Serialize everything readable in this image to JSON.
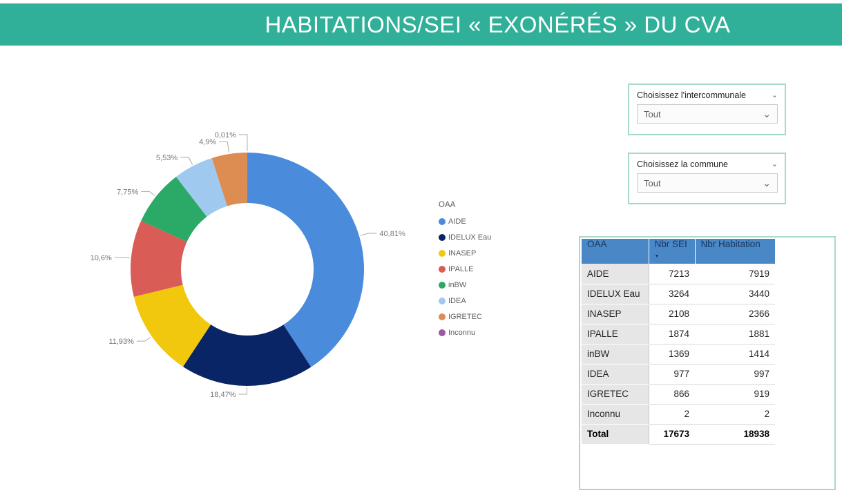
{
  "banner": {
    "title": "HABITATIONS/SEI « EXONÉRÉS » DU CVA"
  },
  "slicers": [
    {
      "label": "Choisissez l'intercommunale",
      "value": "Tout"
    },
    {
      "label": "Choisissez la commune",
      "value": "Tout"
    }
  ],
  "chart_data": {
    "type": "pie",
    "subtype": "donut",
    "legend_title": "OAA",
    "legend_position": "right",
    "categories": [
      "AIDE",
      "IDELUX Eau",
      "INASEP",
      "IPALLE",
      "inBW",
      "IDEA",
      "IGRETEC",
      "Inconnu"
    ],
    "values": [
      40.81,
      18.47,
      11.93,
      10.6,
      7.75,
      5.53,
      4.9,
      0.01
    ],
    "labels": [
      "40,81%",
      "18,47%",
      "11,93%",
      "10,6%",
      "7,75%",
      "5,53%",
      "4,9%",
      "0,01%"
    ],
    "colors": [
      "#4A8BDC",
      "#0A2566",
      "#F2C80F",
      "#D95C56",
      "#2BA966",
      "#9FC9EF",
      "#DD8C52",
      "#9B59A5"
    ],
    "inner_radius_ratio": 0.57,
    "start_angle_deg": 0,
    "direction": "clockwise"
  },
  "table": {
    "columns": [
      "OAA",
      "Nbr SEI",
      "Nbr Habitation"
    ],
    "sorted_by": "Nbr SEI",
    "sort_direction": "descending",
    "rows": [
      [
        "AIDE",
        "7213",
        "7919"
      ],
      [
        "IDELUX Eau",
        "3264",
        "3440"
      ],
      [
        "INASEP",
        "2108",
        "2366"
      ],
      [
        "IPALLE",
        "1874",
        "1881"
      ],
      [
        "inBW",
        "1369",
        "1414"
      ],
      [
        "IDEA",
        "977",
        "997"
      ],
      [
        "IGRETEC",
        "866",
        "919"
      ],
      [
        "Inconnu",
        "2",
        "2"
      ]
    ],
    "total": [
      "Total",
      "17673",
      "18938"
    ]
  },
  "colors": {
    "banner_teal": "#30B099",
    "panel_border": "#A6D9C9",
    "table_header_bg": "#4A87C7",
    "table_header_text": "#17365D",
    "label_gray": "#777676"
  },
  "icons": {
    "slicer_caret": "⌄",
    "dropdown_caret": "⌄",
    "sort_descending": "▼"
  }
}
